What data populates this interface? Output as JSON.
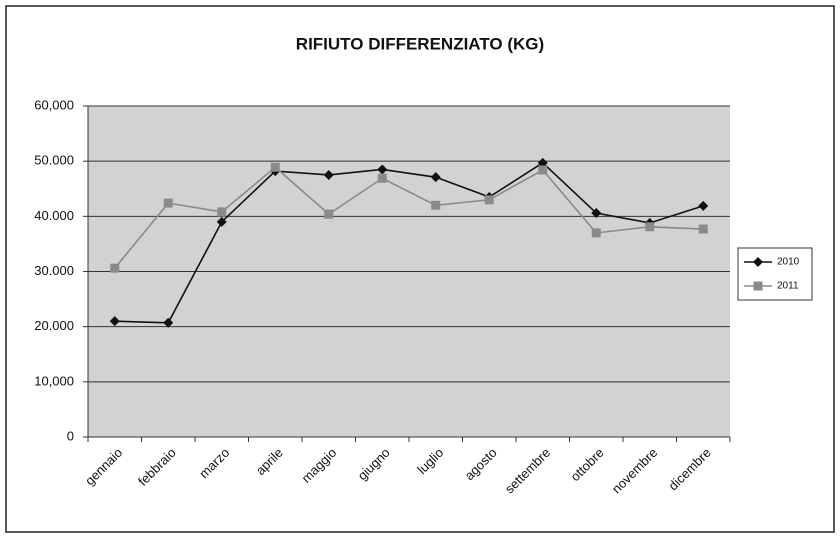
{
  "chart_data": {
    "type": "line",
    "title": "RIFIUTO DIFFERENZIATO (KG)",
    "categories": [
      "gennaio",
      "febbraio",
      "marzo",
      "aprile",
      "maggio",
      "giugno",
      "luglio",
      "agosto",
      "settembre",
      "ottobre",
      "novembre",
      "dicembre"
    ],
    "series": [
      {
        "name": "2010",
        "color": "#111111",
        "marker": "diamond",
        "values": [
          21000,
          20700,
          39000,
          48200,
          47500,
          48500,
          47100,
          43500,
          49700,
          40600,
          38800,
          41900
        ]
      },
      {
        "name": "2011",
        "color": "#8a8a8a",
        "marker": "square",
        "values": [
          30600,
          42400,
          40800,
          48900,
          40400,
          46900,
          42000,
          43000,
          48400,
          37000,
          38100,
          37700
        ]
      }
    ],
    "ylim": [
      0,
      60000
    ],
    "yticks": [
      0,
      {
        "value": 10000,
        "label": "10,000"
      },
      {
        "value": 20000,
        "label": "20.000"
      },
      {
        "value": 30000,
        "label": "30.000"
      },
      {
        "value": 40000,
        "label": "40.000"
      },
      {
        "value": 50000,
        "label": "50.000"
      },
      {
        "value": 60000,
        "label": "60,000"
      }
    ],
    "grid": true,
    "legend": "right"
  }
}
